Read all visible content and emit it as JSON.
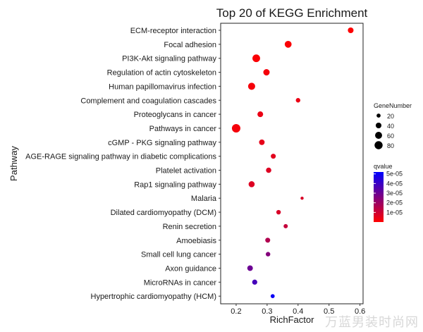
{
  "chart_data": {
    "type": "scatter",
    "title": "Top 20 of KEGG Enrichment",
    "xlabel": "RichFactor",
    "ylabel": "Pathway",
    "xlim": [
      0.15,
      0.61
    ],
    "x_ticks": [
      0.2,
      0.3,
      0.4,
      0.5,
      0.6
    ],
    "x_tick_labels": [
      "0.2",
      "0.3",
      "0.4",
      "0.5",
      "0.6"
    ],
    "grid": false,
    "categories": [
      "ECM-receptor interaction",
      "Focal adhesion",
      "PI3K-Akt signaling pathway",
      "Regulation of actin cytoskeleton",
      "Human papillomavirus infection",
      "Complement and coagulation cascades",
      "Proteoglycans in cancer",
      "Pathways in cancer",
      "cGMP - PKG signaling pathway",
      "AGE-RAGE signaling pathway in diabetic complications",
      "Platelet activation",
      "Rap1 signaling pathway",
      "Malaria",
      "Dilated cardiomyopathy (DCM)",
      "Renin secretion",
      "Amoebiasis",
      "Small cell lung cancer",
      "Axon guidance",
      "MicroRNAs in cancer",
      "Hypertrophic cardiomyopathy (HCM)"
    ],
    "points": [
      {
        "x": 0.57,
        "gene_number": 40,
        "qvalue": 5e-07
      },
      {
        "x": 0.368,
        "gene_number": 58,
        "qvalue": 1e-06
      },
      {
        "x": 0.265,
        "gene_number": 72,
        "qvalue": 1e-06
      },
      {
        "x": 0.298,
        "gene_number": 50,
        "qvalue": 2e-06
      },
      {
        "x": 0.25,
        "gene_number": 62,
        "qvalue": 2e-06
      },
      {
        "x": 0.4,
        "gene_number": 25,
        "qvalue": 4e-06
      },
      {
        "x": 0.278,
        "gene_number": 40,
        "qvalue": 4e-06
      },
      {
        "x": 0.2,
        "gene_number": 88,
        "qvalue": 2e-06
      },
      {
        "x": 0.283,
        "gene_number": 38,
        "qvalue": 5e-06
      },
      {
        "x": 0.32,
        "gene_number": 30,
        "qvalue": 6e-06
      },
      {
        "x": 0.305,
        "gene_number": 35,
        "qvalue": 7e-06
      },
      {
        "x": 0.25,
        "gene_number": 45,
        "qvalue": 7e-06
      },
      {
        "x": 0.413,
        "gene_number": 12,
        "qvalue": 8e-06
      },
      {
        "x": 0.337,
        "gene_number": 25,
        "qvalue": 8e-06
      },
      {
        "x": 0.36,
        "gene_number": 22,
        "qvalue": 1.2e-05
      },
      {
        "x": 0.302,
        "gene_number": 30,
        "qvalue": 1.6e-05
      },
      {
        "x": 0.303,
        "gene_number": 25,
        "qvalue": 2.5e-05
      },
      {
        "x": 0.245,
        "gene_number": 38,
        "qvalue": 3e-05
      },
      {
        "x": 0.26,
        "gene_number": 32,
        "qvalue": 3.8e-05
      },
      {
        "x": 0.318,
        "gene_number": 20,
        "qvalue": 5e-05
      }
    ],
    "size_legend": {
      "title": "GeneNumber",
      "entries": [
        20,
        40,
        60,
        80
      ],
      "labels": [
        "20",
        "40",
        "60",
        "80"
      ]
    },
    "color_legend": {
      "title": "qvalue",
      "min": 0,
      "max": 5.2e-05,
      "low_color": "#ff0000",
      "high_color": "#0000ff",
      "ticks": [
        5e-05,
        4e-05,
        3e-05,
        2e-05,
        1e-05
      ],
      "tick_labels": [
        "5e-05",
        "4e-05",
        "3e-05",
        "2e-05",
        "1e-05"
      ]
    }
  },
  "watermark": "万蓝男装时尚网"
}
